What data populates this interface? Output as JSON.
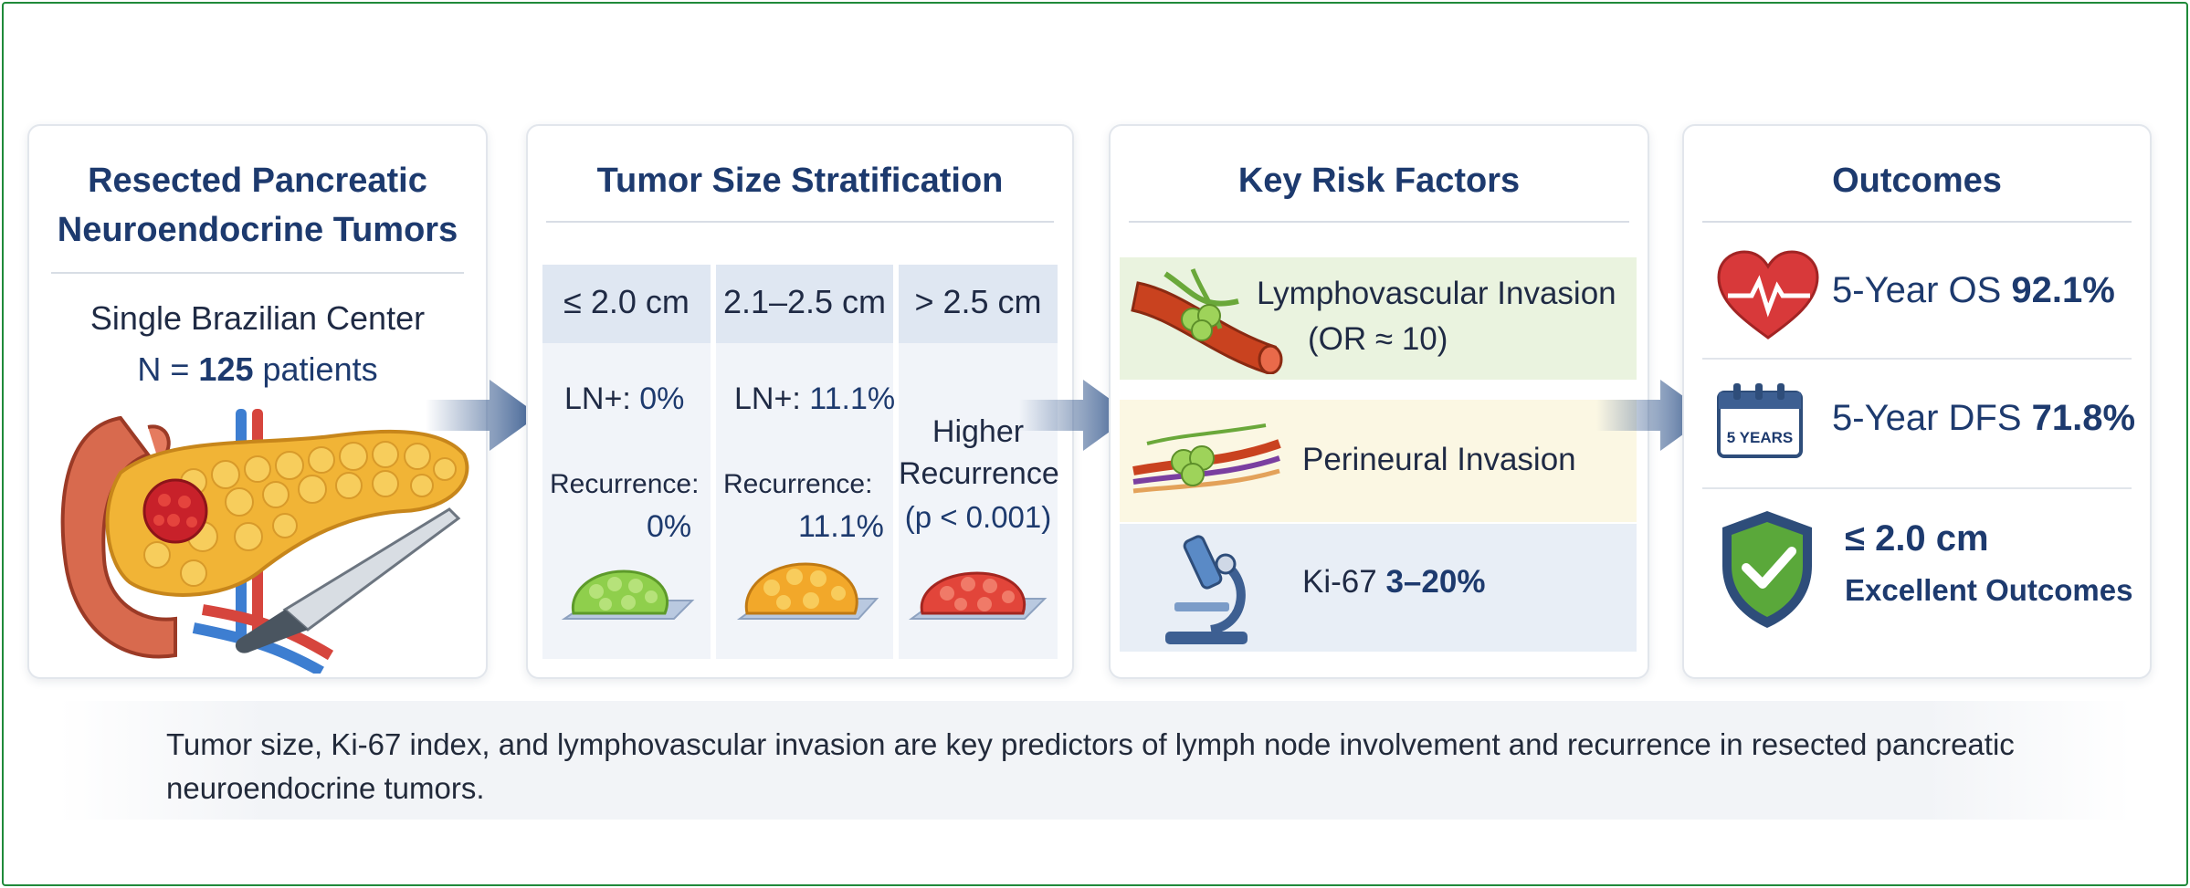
{
  "panels": {
    "cohort": {
      "title_line1": "Resected Pancreatic",
      "title_line2": "Neuroendocrine Tumors",
      "center": "Single Brazilian Center",
      "n_prefix": "N =",
      "n_value": "125",
      "n_suffix": "patients"
    },
    "size": {
      "title": "Tumor Size Stratification",
      "columns": [
        {
          "header": "≤ 2.0 cm",
          "ln_label": "LN+:",
          "ln_value": "0%",
          "rec_label": "Recurrence:",
          "rec_value": "0%",
          "tumor_color": "#8fcf4c"
        },
        {
          "header": "2.1–2.5 cm",
          "ln_label": "LN+:",
          "ln_value": "11.1%",
          "rec_label": "Recurrence:",
          "rec_value": "11.1%",
          "tumor_color": "#f2a82a"
        },
        {
          "header": "> 2.5 cm",
          "line1": "Higher",
          "line2": "Recurrence",
          "line3": "(p < 0.001)",
          "tumor_color": "#e2453a"
        }
      ]
    },
    "risk": {
      "title": "Key Risk Factors",
      "items": [
        {
          "line1": "Lymphovascular Invasion",
          "line2": "(OR ≈ 10)",
          "bg": "#eaf3df"
        },
        {
          "line1": "Perineural Invasion",
          "bg": "#fbf7e3"
        },
        {
          "label": "Ki-67",
          "value": "3–20%",
          "bg": "#e8eef6"
        }
      ]
    },
    "outcomes": {
      "title": "Outcomes",
      "os_label": "5-Year OS",
      "os_value": "92.1%",
      "calendar_text": "5 YEARS",
      "dfs_label": "5-Year DFS",
      "dfs_value": "71.8%",
      "shield_line1": "≤ 2.0 cm",
      "shield_line2": "Excellent Outcomes"
    }
  },
  "caption": "Tumor size, Ki-67 index, and lymphovascular invasion are key predictors of lymph node involvement and recurrence in resected pancreatic neuroendocrine tumors.",
  "colors": {
    "title_navy": "#1d3a6e",
    "frame_green": "#1f8a3a",
    "arrow_blue": "#3d5f92"
  }
}
